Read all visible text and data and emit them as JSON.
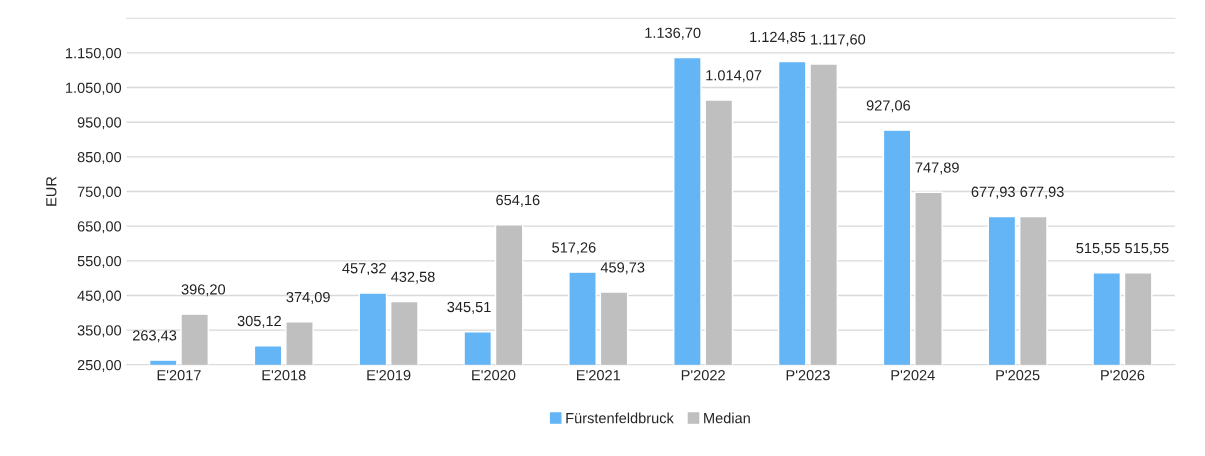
{
  "chart_data": {
    "type": "bar",
    "ylabel": "EUR",
    "categories": [
      "E'2017",
      "E'2018",
      "E'2019",
      "E'2020",
      "E'2021",
      "P'2022",
      "P'2023",
      "P'2024",
      "P'2025",
      "P'2026"
    ],
    "series": [
      {
        "name": "Fürstenfeldbruck",
        "color": "#63b5f6",
        "values": [
          263.43,
          305.12,
          457.32,
          345.51,
          517.26,
          1136.7,
          1124.85,
          927.06,
          677.93,
          515.55
        ],
        "value_labels": [
          "263,43",
          "305,12",
          "457,32",
          "345,51",
          "517,26",
          "1.136,70",
          "1.124,85",
          "927,06",
          "677,93",
          "515,55"
        ]
      },
      {
        "name": "Median",
        "color": "#bfbfbf",
        "values": [
          396.2,
          374.09,
          432.58,
          654.16,
          459.73,
          1014.07,
          1117.6,
          747.89,
          677.93,
          515.55
        ],
        "value_labels": [
          "396,20",
          "374,09",
          "432,58",
          "654,16",
          "459,73",
          "1.014,07",
          "1.117,60",
          "747,89",
          "677,93",
          "515,55"
        ]
      }
    ],
    "ylim": [
      250,
      1250
    ],
    "yticks": [
      {
        "value": 250,
        "label": "250,00"
      },
      {
        "value": 350,
        "label": "350,00"
      },
      {
        "value": 450,
        "label": "450,00"
      },
      {
        "value": 550,
        "label": "550,00"
      },
      {
        "value": 650,
        "label": "650,00"
      },
      {
        "value": 750,
        "label": "750,00"
      },
      {
        "value": 850,
        "label": "850,00"
      },
      {
        "value": 950,
        "label": "950,00"
      },
      {
        "value": 1050,
        "label": "1.050,00"
      },
      {
        "value": 1150,
        "label": "1.150,00"
      }
    ],
    "grid": "y",
    "legend": "bottom"
  }
}
